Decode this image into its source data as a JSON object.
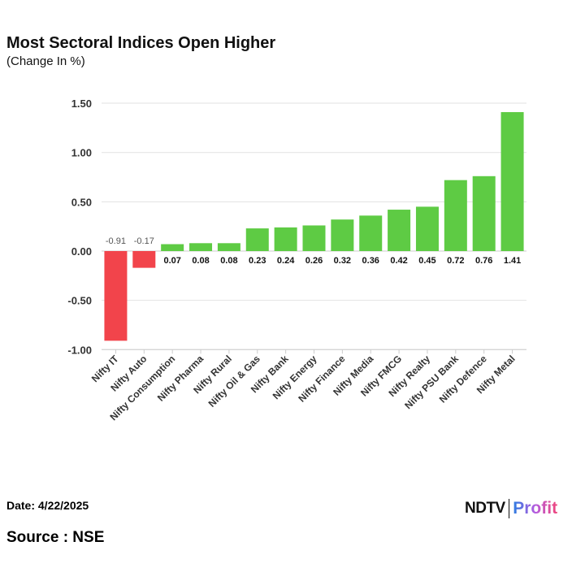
{
  "header": {
    "title": "Most Sectoral Indices Open Higher",
    "subtitle": "(Change In %)"
  },
  "footer": {
    "date": "Date: 4/22/2025",
    "source": "Source : NSE",
    "logo_left": "NDTV",
    "logo_right": "Profit"
  },
  "colors": {
    "positive": "#5ecb44",
    "negative": "#f2444b"
  },
  "chart_data": {
    "type": "bar",
    "title": "Most Sectoral Indices Open Higher",
    "ylabel": "Change In %",
    "xlabel": "",
    "ylim": [
      -1.0,
      1.5
    ],
    "yticks": [
      "1.50",
      "1.00",
      "0.50",
      "0.00",
      "-0.50",
      "-1.00"
    ],
    "ytick_values": [
      1.5,
      1.0,
      0.5,
      0.0,
      -0.5,
      -1.0
    ],
    "grid": true,
    "categories": [
      "Nifty IT",
      "Nifty Auto",
      "Nifty Consumption",
      "Nifty Pharma",
      "Nifty Rural",
      "Nifty Oil & Gas",
      "Nifty Bank",
      "Nifty Energy",
      "Nifty Finance",
      "Nifty Media",
      "Nifty FMCG",
      "Nifty Realty",
      "Nifty PSU Bank",
      "Nifty Defence",
      "Nifty Metal"
    ],
    "values": [
      -0.91,
      -0.17,
      0.07,
      0.08,
      0.08,
      0.23,
      0.24,
      0.26,
      0.32,
      0.36,
      0.42,
      0.45,
      0.72,
      0.76,
      1.41
    ],
    "labels": [
      "-0.91",
      "-0.17",
      "0.07",
      "0.08",
      "0.08",
      "0.23",
      "0.24",
      "0.26",
      "0.32",
      "0.36",
      "0.42",
      "0.45",
      "0.72",
      "0.76",
      "1.41"
    ]
  }
}
